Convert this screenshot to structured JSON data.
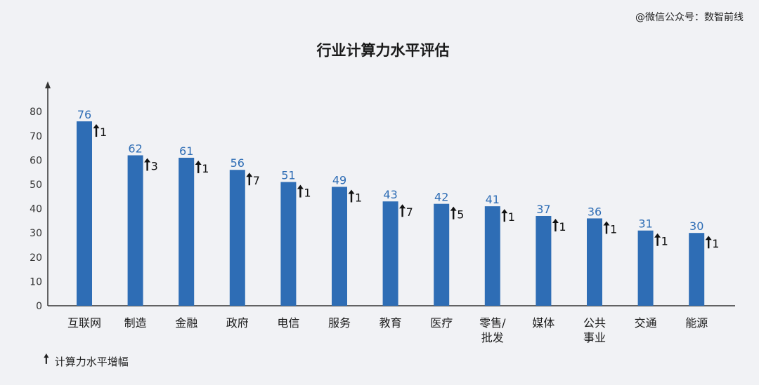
{
  "watermark": "@微信公众号：数智前线",
  "colors": {
    "bar": "#2e6db5",
    "value_label": "#2e6db5",
    "axis": "#333333",
    "background": "#f1f2f5"
  },
  "legend": {
    "icon": "up-arrow-icon",
    "text": "计算力水平增幅"
  },
  "chart_data": {
    "type": "bar",
    "title": "行业计算力水平评估",
    "xlabel": "",
    "ylabel": "",
    "ylim": [
      0,
      85
    ],
    "yticks": [
      0,
      10,
      20,
      30,
      40,
      50,
      60,
      70,
      80
    ],
    "grid": false,
    "categories": [
      [
        "互联网"
      ],
      [
        "制造"
      ],
      [
        "金融"
      ],
      [
        "政府"
      ],
      [
        "电信"
      ],
      [
        "服务"
      ],
      [
        "教育"
      ],
      [
        "医疗"
      ],
      [
        "零售/",
        "批发"
      ],
      [
        "媒体"
      ],
      [
        "公共",
        "事业"
      ],
      [
        "交通"
      ],
      [
        "能源"
      ]
    ],
    "series": [
      {
        "values": [
          76,
          62,
          61,
          56,
          51,
          49,
          43,
          42,
          41,
          37,
          36,
          31,
          30
        ]
      }
    ],
    "increase": [
      1,
      3,
      1,
      7,
      1,
      1,
      7,
      5,
      1,
      1,
      1,
      1,
      1
    ],
    "legend_position": "bottom-left"
  }
}
